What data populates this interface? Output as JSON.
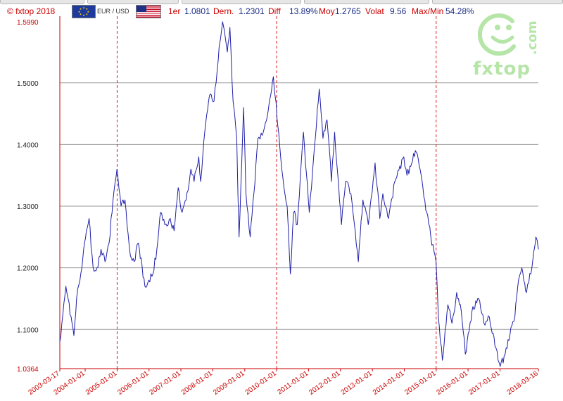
{
  "header": {
    "copyright": "© fxtop 2018",
    "pair": "EUR / USD",
    "stats": [
      {
        "label": "1er",
        "value": "1.0801"
      },
      {
        "label": "Dern.",
        "value": "1.2301"
      },
      {
        "label": "Diff",
        "value": "13.89%"
      },
      {
        "label": "Moy",
        "value": "1.2765"
      },
      {
        "label": "Volat",
        "value": "9.56"
      },
      {
        "label": "Max/Min",
        "value": "54.28%"
      }
    ]
  },
  "logo": {
    "text": "fxtop",
    "domain": ".com"
  },
  "colors": {
    "line": "#1f1fa8",
    "axis": "#cc0000",
    "grid": "#999999",
    "vline": "#dd2222"
  },
  "chart_data": {
    "type": "line",
    "title": "",
    "xlabel": "",
    "ylabel": "",
    "ylim": [
      1.0364,
      1.599
    ],
    "xlim": [
      "2003-03-17",
      "2018-03-16"
    ],
    "grid": true,
    "y_tick_labels": [
      "1.0364",
      "1.1000",
      "1.2000",
      "1.3000",
      "1.4000",
      "1.5000",
      "1.5990"
    ],
    "y_tick_values": [
      1.0364,
      1.1,
      1.2,
      1.3,
      1.4,
      1.5,
      1.599
    ],
    "x_tick_labels": [
      "2003-03-17",
      "2004-01-01",
      "2005-01-01",
      "2006-01-01",
      "2007-01-01",
      "2008-01-01",
      "2009-01-01",
      "2010-01-01",
      "2011-01-01",
      "2012-01-01",
      "2013-01-01",
      "2014-01-01",
      "2015-01-01",
      "2016-01-01",
      "2017-01-01",
      "2018-03-16"
    ],
    "x_tick_dates": [
      "2003-03-17",
      "2004-01-01",
      "2005-01-01",
      "2006-01-01",
      "2007-01-01",
      "2008-01-01",
      "2009-01-01",
      "2010-01-01",
      "2011-01-01",
      "2012-01-01",
      "2013-01-01",
      "2014-01-01",
      "2015-01-01",
      "2016-01-01",
      "2017-01-01",
      "2018-03-16"
    ],
    "highlighted_dates": [
      "2005-01-01",
      "2010-01-01",
      "2015-01-01"
    ],
    "series": [
      {
        "values": [
          [
            "2003-03-17",
            1.08
          ],
          [
            "2003-05-25",
            1.17
          ],
          [
            "2003-06-20",
            1.15
          ],
          [
            "2003-08-25",
            1.09
          ],
          [
            "2003-09-25",
            1.15
          ],
          [
            "2003-11-25",
            1.2
          ],
          [
            "2004-01-15",
            1.26
          ],
          [
            "2004-02-15",
            1.28
          ],
          [
            "2004-04-01",
            1.2
          ],
          [
            "2004-05-15",
            1.2
          ],
          [
            "2004-07-01",
            1.23
          ],
          [
            "2004-08-15",
            1.21
          ],
          [
            "2004-10-01",
            1.24
          ],
          [
            "2004-11-15",
            1.31
          ],
          [
            "2004-12-30",
            1.36
          ],
          [
            "2005-02-15",
            1.3
          ],
          [
            "2005-04-01",
            1.31
          ],
          [
            "2005-06-01",
            1.22
          ],
          [
            "2005-07-15",
            1.21
          ],
          [
            "2005-09-01",
            1.24
          ],
          [
            "2005-10-15",
            1.2
          ],
          [
            "2005-11-15",
            1.17
          ],
          [
            "2005-12-30",
            1.18
          ],
          [
            "2006-02-15",
            1.19
          ],
          [
            "2006-04-01",
            1.23
          ],
          [
            "2006-05-15",
            1.29
          ],
          [
            "2006-07-01",
            1.27
          ],
          [
            "2006-09-01",
            1.28
          ],
          [
            "2006-10-15",
            1.26
          ],
          [
            "2006-12-01",
            1.33
          ],
          [
            "2007-01-15",
            1.29
          ],
          [
            "2007-03-01",
            1.31
          ],
          [
            "2007-04-25",
            1.36
          ],
          [
            "2007-06-01",
            1.34
          ],
          [
            "2007-07-25",
            1.38
          ],
          [
            "2007-08-15",
            1.34
          ],
          [
            "2007-10-01",
            1.42
          ],
          [
            "2007-11-25",
            1.48
          ],
          [
            "2008-01-15",
            1.47
          ],
          [
            "2008-03-15",
            1.56
          ],
          [
            "2008-04-22",
            1.599
          ],
          [
            "2008-06-15",
            1.55
          ],
          [
            "2008-07-15",
            1.59
          ],
          [
            "2008-08-20",
            1.47
          ],
          [
            "2008-10-01",
            1.41
          ],
          [
            "2008-10-28",
            1.25
          ],
          [
            "2008-12-18",
            1.46
          ],
          [
            "2009-01-15",
            1.32
          ],
          [
            "2009-03-04",
            1.25
          ],
          [
            "2009-04-15",
            1.32
          ],
          [
            "2009-06-01",
            1.41
          ],
          [
            "2009-08-01",
            1.42
          ],
          [
            "2009-10-01",
            1.46
          ],
          [
            "2009-11-25",
            1.51
          ],
          [
            "2010-01-15",
            1.43
          ],
          [
            "2010-03-01",
            1.36
          ],
          [
            "2010-05-01",
            1.3
          ],
          [
            "2010-06-07",
            1.19
          ],
          [
            "2010-07-15",
            1.29
          ],
          [
            "2010-08-25",
            1.27
          ],
          [
            "2010-11-04",
            1.42
          ],
          [
            "2011-01-10",
            1.29
          ],
          [
            "2011-03-01",
            1.38
          ],
          [
            "2011-05-03",
            1.49
          ],
          [
            "2011-06-15",
            1.41
          ],
          [
            "2011-08-01",
            1.44
          ],
          [
            "2011-09-20",
            1.34
          ],
          [
            "2011-10-27",
            1.42
          ],
          [
            "2012-01-13",
            1.27
          ],
          [
            "2012-02-29",
            1.34
          ],
          [
            "2012-05-01",
            1.32
          ],
          [
            "2012-07-24",
            1.21
          ],
          [
            "2012-09-15",
            1.31
          ],
          [
            "2012-11-15",
            1.27
          ],
          [
            "2013-02-01",
            1.37
          ],
          [
            "2013-03-27",
            1.28
          ],
          [
            "2013-05-01",
            1.32
          ],
          [
            "2013-07-05",
            1.28
          ],
          [
            "2013-09-15",
            1.34
          ],
          [
            "2013-12-27",
            1.38
          ],
          [
            "2014-02-01",
            1.35
          ],
          [
            "2014-05-08",
            1.39
          ],
          [
            "2014-07-01",
            1.36
          ],
          [
            "2014-09-15",
            1.29
          ],
          [
            "2014-11-01",
            1.25
          ],
          [
            "2014-12-31",
            1.21
          ],
          [
            "2015-01-26",
            1.12
          ],
          [
            "2015-03-13",
            1.05
          ],
          [
            "2015-05-15",
            1.14
          ],
          [
            "2015-07-01",
            1.11
          ],
          [
            "2015-08-24",
            1.16
          ],
          [
            "2015-10-15",
            1.13
          ],
          [
            "2015-12-01",
            1.06
          ],
          [
            "2016-02-15",
            1.13
          ],
          [
            "2016-05-01",
            1.15
          ],
          [
            "2016-07-01",
            1.11
          ],
          [
            "2016-09-01",
            1.12
          ],
          [
            "2016-11-15",
            1.07
          ],
          [
            "2017-01-03",
            1.04
          ],
          [
            "2017-03-01",
            1.06
          ],
          [
            "2017-04-24",
            1.09
          ],
          [
            "2017-06-20",
            1.12
          ],
          [
            "2017-08-01",
            1.18
          ],
          [
            "2017-09-08",
            1.2
          ],
          [
            "2017-11-01",
            1.16
          ],
          [
            "2018-01-01",
            1.2
          ],
          [
            "2018-02-16",
            1.25
          ],
          [
            "2018-03-16",
            1.23
          ]
        ]
      }
    ]
  }
}
